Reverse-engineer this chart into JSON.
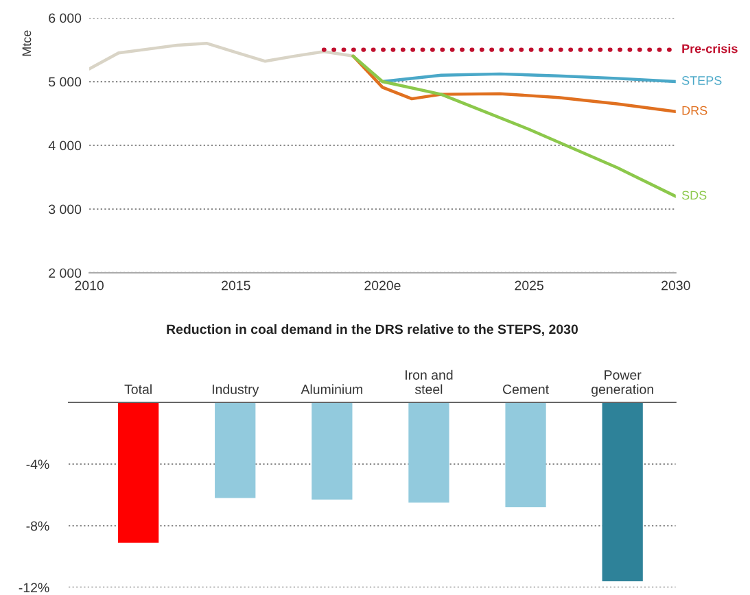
{
  "chart_data": [
    {
      "type": "line",
      "ylabel": "Mtce",
      "xlim": [
        2010,
        2030
      ],
      "ylim": [
        2000,
        6000
      ],
      "xticks": [
        2010,
        2015,
        {
          "value": 2020,
          "label": "2020e"
        },
        2025,
        2030
      ],
      "yticks": [
        {
          "value": 2000,
          "label": "2 000"
        },
        {
          "value": 3000,
          "label": "3 000"
        },
        {
          "value": 4000,
          "label": "4 000"
        },
        {
          "value": 5000,
          "label": "5 000"
        },
        {
          "value": 6000,
          "label": "6 000"
        }
      ],
      "grid": "y",
      "legend": false,
      "series": [
        {
          "color": "#d9d4c6",
          "x": [
            2010,
            2011,
            2012,
            2013,
            2014,
            2015,
            2016,
            2017,
            2018,
            2019
          ],
          "values": [
            5200,
            5450,
            5510,
            5570,
            5600,
            5460,
            5320,
            5400,
            5470,
            5400
          ]
        },
        {
          "name": "Pre-crisis",
          "color": "#c0102e",
          "line_style": "dotted",
          "x": [
            2018,
            2030
          ],
          "values": [
            5500,
            5500
          ]
        },
        {
          "name": "STEPS",
          "color": "#4aa8c8",
          "x": [
            2020,
            2022,
            2024,
            2026,
            2028,
            2030
          ],
          "values": [
            5000,
            5100,
            5120,
            5090,
            5050,
            5000
          ]
        },
        {
          "name": "DRS",
          "color": "#e07020",
          "x": [
            2019,
            2020,
            2021,
            2022,
            2024,
            2026,
            2028,
            2030
          ],
          "values": [
            5400,
            4910,
            4730,
            4800,
            4810,
            4750,
            4650,
            4530
          ]
        },
        {
          "name": "SDS",
          "color": "#8cc84b",
          "x": [
            2019,
            2020,
            2022,
            2025,
            2028,
            2030
          ],
          "values": [
            5400,
            5000,
            4800,
            4250,
            3650,
            3200
          ]
        }
      ]
    },
    {
      "type": "bar",
      "title": "Reduction in coal demand in the DRS relative to the STEPS, 2030",
      "categories": [
        "Total",
        "Industry",
        "Aluminium",
        "Iron and\nsteel",
        "Cement",
        "Power\ngeneration"
      ],
      "values": [
        -9.1,
        -6.2,
        -6.3,
        -6.5,
        -6.8,
        -11.6
      ],
      "colors": [
        "#ff0000",
        "#92cadd",
        "#92cadd",
        "#92cadd",
        "#92cadd",
        "#2e8299"
      ],
      "ylim": [
        -12,
        0
      ],
      "yticks": [
        {
          "value": -12,
          "label": "-12%"
        },
        {
          "value": -8,
          "label": "-8%"
        },
        {
          "value": -4,
          "label": "-4%"
        }
      ],
      "grid": "y"
    }
  ]
}
